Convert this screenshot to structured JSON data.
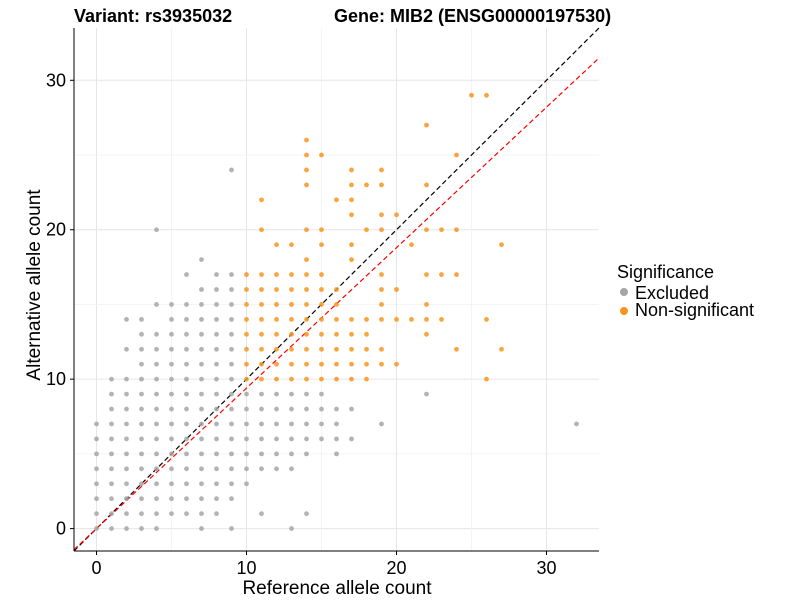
{
  "titles": {
    "variant": "Variant: rs3935032",
    "gene": "Gene: MIB2 (ENSG00000197530)"
  },
  "legend": {
    "title": "Significance",
    "items": [
      {
        "label": "Excluded",
        "color": "#a6a6a6"
      },
      {
        "label": "Non-significant",
        "color": "#f7941d"
      }
    ]
  },
  "chart_data": {
    "type": "scatter",
    "xlabel": "Reference allele count",
    "ylabel": "Alternative allele count",
    "xlim": [
      -1.5,
      33.5
    ],
    "ylim": [
      -1.5,
      33.5
    ],
    "xticks": [
      0,
      10,
      20,
      30
    ],
    "yticks": [
      0,
      10,
      20,
      30
    ],
    "grid": true,
    "legend_position": "right",
    "reference_lines": [
      {
        "name": "identity",
        "slope": 1,
        "intercept": 0,
        "color": "#000000",
        "style": "dashed"
      },
      {
        "name": "fitted",
        "slope": 0.94,
        "intercept": 0,
        "color": "#ff0000",
        "style": "dashed"
      }
    ],
    "series": [
      {
        "name": "Excluded",
        "color": "#a6a6a6",
        "points": [
          [
            0,
            0
          ],
          [
            0,
            1
          ],
          [
            0,
            2
          ],
          [
            0,
            3
          ],
          [
            0,
            4
          ],
          [
            0,
            5
          ],
          [
            0,
            6
          ],
          [
            0,
            7
          ],
          [
            1,
            0
          ],
          [
            1,
            1
          ],
          [
            1,
            2
          ],
          [
            1,
            3
          ],
          [
            1,
            4
          ],
          [
            1,
            5
          ],
          [
            1,
            6
          ],
          [
            1,
            7
          ],
          [
            1,
            8
          ],
          [
            1,
            9
          ],
          [
            1,
            10
          ],
          [
            2,
            0
          ],
          [
            2,
            1
          ],
          [
            2,
            2
          ],
          [
            2,
            3
          ],
          [
            2,
            4
          ],
          [
            2,
            5
          ],
          [
            2,
            6
          ],
          [
            2,
            7
          ],
          [
            2,
            8
          ],
          [
            2,
            9
          ],
          [
            2,
            10
          ],
          [
            2,
            12
          ],
          [
            2,
            14
          ],
          [
            3,
            0
          ],
          [
            3,
            1
          ],
          [
            3,
            2
          ],
          [
            3,
            3
          ],
          [
            3,
            4
          ],
          [
            3,
            5
          ],
          [
            3,
            6
          ],
          [
            3,
            7
          ],
          [
            3,
            8
          ],
          [
            3,
            9
          ],
          [
            3,
            10
          ],
          [
            3,
            11
          ],
          [
            3,
            12
          ],
          [
            3,
            13
          ],
          [
            3,
            14
          ],
          [
            4,
            0
          ],
          [
            4,
            1
          ],
          [
            4,
            2
          ],
          [
            4,
            3
          ],
          [
            4,
            4
          ],
          [
            4,
            5
          ],
          [
            4,
            6
          ],
          [
            4,
            7
          ],
          [
            4,
            8
          ],
          [
            4,
            9
          ],
          [
            4,
            10
          ],
          [
            4,
            11
          ],
          [
            4,
            12
          ],
          [
            4,
            13
          ],
          [
            4,
            15
          ],
          [
            4,
            20
          ],
          [
            5,
            1
          ],
          [
            5,
            2
          ],
          [
            5,
            3
          ],
          [
            5,
            4
          ],
          [
            5,
            5
          ],
          [
            5,
            6
          ],
          [
            5,
            7
          ],
          [
            5,
            8
          ],
          [
            5,
            9
          ],
          [
            5,
            10
          ],
          [
            5,
            11
          ],
          [
            5,
            12
          ],
          [
            5,
            13
          ],
          [
            5,
            14
          ],
          [
            5,
            15
          ],
          [
            6,
            1
          ],
          [
            6,
            2
          ],
          [
            6,
            3
          ],
          [
            6,
            4
          ],
          [
            6,
            5
          ],
          [
            6,
            6
          ],
          [
            6,
            7
          ],
          [
            6,
            8
          ],
          [
            6,
            9
          ],
          [
            6,
            10
          ],
          [
            6,
            11
          ],
          [
            6,
            12
          ],
          [
            6,
            13
          ],
          [
            6,
            14
          ],
          [
            6,
            15
          ],
          [
            6,
            17
          ],
          [
            7,
            0
          ],
          [
            7,
            1
          ],
          [
            7,
            2
          ],
          [
            7,
            3
          ],
          [
            7,
            4
          ],
          [
            7,
            5
          ],
          [
            7,
            6
          ],
          [
            7,
            7
          ],
          [
            7,
            8
          ],
          [
            7,
            9
          ],
          [
            7,
            10
          ],
          [
            7,
            11
          ],
          [
            7,
            12
          ],
          [
            7,
            13
          ],
          [
            7,
            14
          ],
          [
            7,
            15
          ],
          [
            7,
            16
          ],
          [
            7,
            18
          ],
          [
            8,
            1
          ],
          [
            8,
            2
          ],
          [
            8,
            3
          ],
          [
            8,
            4
          ],
          [
            8,
            5
          ],
          [
            8,
            6
          ],
          [
            8,
            7
          ],
          [
            8,
            8
          ],
          [
            8,
            9
          ],
          [
            8,
            10
          ],
          [
            8,
            11
          ],
          [
            8,
            12
          ],
          [
            8,
            13
          ],
          [
            8,
            14
          ],
          [
            8,
            15
          ],
          [
            8,
            16
          ],
          [
            8,
            17
          ],
          [
            9,
            0
          ],
          [
            9,
            2
          ],
          [
            9,
            3
          ],
          [
            9,
            4
          ],
          [
            9,
            5
          ],
          [
            9,
            6
          ],
          [
            9,
            7
          ],
          [
            9,
            8
          ],
          [
            9,
            9
          ],
          [
            9,
            10
          ],
          [
            9,
            11
          ],
          [
            9,
            12
          ],
          [
            9,
            13
          ],
          [
            9,
            14
          ],
          [
            9,
            15
          ],
          [
            9,
            16
          ],
          [
            9,
            17
          ],
          [
            9,
            24
          ],
          [
            10,
            3
          ],
          [
            10,
            4
          ],
          [
            10,
            5
          ],
          [
            10,
            6
          ],
          [
            10,
            7
          ],
          [
            10,
            8
          ],
          [
            10,
            9
          ],
          [
            11,
            1
          ],
          [
            11,
            4
          ],
          [
            11,
            5
          ],
          [
            11,
            6
          ],
          [
            11,
            7
          ],
          [
            11,
            8
          ],
          [
            11,
            9
          ],
          [
            12,
            4
          ],
          [
            12,
            5
          ],
          [
            12,
            6
          ],
          [
            12,
            7
          ],
          [
            12,
            8
          ],
          [
            12,
            9
          ],
          [
            13,
            0
          ],
          [
            13,
            4
          ],
          [
            13,
            5
          ],
          [
            13,
            6
          ],
          [
            13,
            7
          ],
          [
            13,
            8
          ],
          [
            13,
            9
          ],
          [
            14,
            1
          ],
          [
            14,
            5
          ],
          [
            14,
            6
          ],
          [
            14,
            7
          ],
          [
            14,
            8
          ],
          [
            14,
            9
          ],
          [
            15,
            6
          ],
          [
            15,
            7
          ],
          [
            15,
            8
          ],
          [
            15,
            9
          ],
          [
            16,
            5
          ],
          [
            16,
            6
          ],
          [
            16,
            7
          ],
          [
            16,
            8
          ],
          [
            17,
            6
          ],
          [
            17,
            8
          ],
          [
            19,
            7
          ],
          [
            22,
            9
          ],
          [
            32,
            7
          ]
        ]
      },
      {
        "name": "Non-significant",
        "color": "#f7941d",
        "points": [
          [
            10,
            10
          ],
          [
            10,
            11
          ],
          [
            10,
            12
          ],
          [
            10,
            13
          ],
          [
            10,
            14
          ],
          [
            10,
            15
          ],
          [
            10,
            16
          ],
          [
            10,
            17
          ],
          [
            11,
            10
          ],
          [
            11,
            11
          ],
          [
            11,
            12
          ],
          [
            11,
            13
          ],
          [
            11,
            14
          ],
          [
            11,
            15
          ],
          [
            11,
            16
          ],
          [
            11,
            17
          ],
          [
            11,
            20
          ],
          [
            11,
            22
          ],
          [
            12,
            10
          ],
          [
            12,
            11
          ],
          [
            12,
            12
          ],
          [
            12,
            13
          ],
          [
            12,
            14
          ],
          [
            12,
            15
          ],
          [
            12,
            16
          ],
          [
            12,
            17
          ],
          [
            12,
            19
          ],
          [
            13,
            10
          ],
          [
            13,
            11
          ],
          [
            13,
            12
          ],
          [
            13,
            13
          ],
          [
            13,
            14
          ],
          [
            13,
            15
          ],
          [
            13,
            16
          ],
          [
            13,
            17
          ],
          [
            13,
            19
          ],
          [
            14,
            10
          ],
          [
            14,
            11
          ],
          [
            14,
            12
          ],
          [
            14,
            13
          ],
          [
            14,
            14
          ],
          [
            14,
            15
          ],
          [
            14,
            16
          ],
          [
            14,
            17
          ],
          [
            14,
            18
          ],
          [
            14,
            20
          ],
          [
            14,
            23
          ],
          [
            14,
            24
          ],
          [
            14,
            25
          ],
          [
            14,
            26
          ],
          [
            15,
            10
          ],
          [
            15,
            11
          ],
          [
            15,
            12
          ],
          [
            15,
            13
          ],
          [
            15,
            14
          ],
          [
            15,
            15
          ],
          [
            15,
            16
          ],
          [
            15,
            17
          ],
          [
            15,
            19
          ],
          [
            15,
            20
          ],
          [
            15,
            25
          ],
          [
            16,
            10
          ],
          [
            16,
            11
          ],
          [
            16,
            12
          ],
          [
            16,
            13
          ],
          [
            16,
            14
          ],
          [
            16,
            15
          ],
          [
            16,
            16
          ],
          [
            16,
            22
          ],
          [
            17,
            10
          ],
          [
            17,
            11
          ],
          [
            17,
            12
          ],
          [
            17,
            13
          ],
          [
            17,
            14
          ],
          [
            17,
            18
          ],
          [
            17,
            19
          ],
          [
            17,
            21
          ],
          [
            17,
            22
          ],
          [
            17,
            23
          ],
          [
            17,
            24
          ],
          [
            18,
            10
          ],
          [
            18,
            11
          ],
          [
            18,
            12
          ],
          [
            18,
            13
          ],
          [
            18,
            14
          ],
          [
            18,
            20
          ],
          [
            18,
            23
          ],
          [
            19,
            11
          ],
          [
            19,
            12
          ],
          [
            19,
            14
          ],
          [
            19,
            15
          ],
          [
            19,
            16
          ],
          [
            19,
            17
          ],
          [
            19,
            20
          ],
          [
            19,
            21
          ],
          [
            19,
            23
          ],
          [
            19,
            24
          ],
          [
            20,
            11
          ],
          [
            20,
            14
          ],
          [
            20,
            16
          ],
          [
            20,
            21
          ],
          [
            21,
            14
          ],
          [
            21,
            19
          ],
          [
            22,
            13
          ],
          [
            22,
            14
          ],
          [
            22,
            15
          ],
          [
            22,
            17
          ],
          [
            22,
            20
          ],
          [
            22,
            23
          ],
          [
            22,
            27
          ],
          [
            23,
            14
          ],
          [
            23,
            17
          ],
          [
            23,
            20
          ],
          [
            24,
            12
          ],
          [
            24,
            17
          ],
          [
            24,
            20
          ],
          [
            24,
            25
          ],
          [
            25,
            29
          ],
          [
            26,
            10
          ],
          [
            26,
            14
          ],
          [
            26,
            29
          ],
          [
            27,
            12
          ],
          [
            27,
            19
          ]
        ]
      }
    ]
  }
}
